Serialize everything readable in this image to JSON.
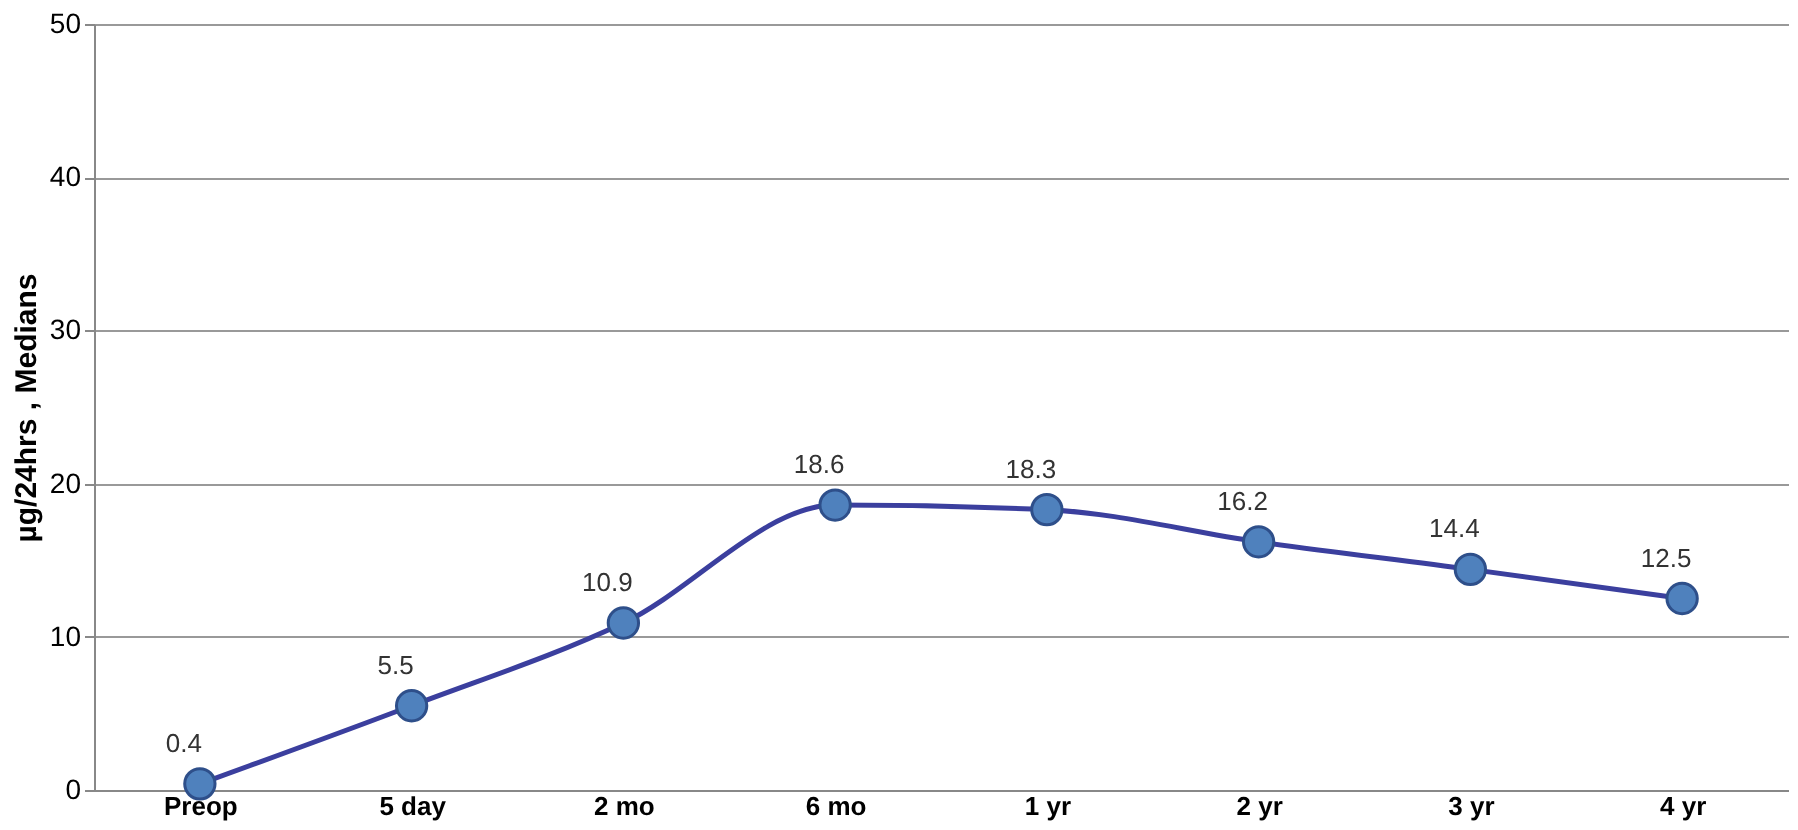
{
  "chart_data": {
    "type": "line",
    "ylabel": "µg/24hrs , Medians",
    "categories": [
      "Preop",
      "5 day",
      "2 mo",
      "6 mo",
      "1 yr",
      "2 yr",
      "3 yr",
      "4 yr"
    ],
    "series": [
      {
        "color": "#3b3f9e",
        "values": [
          0.4,
          5.5,
          10.9,
          18.6,
          18.3,
          16.2,
          14.4,
          12.5
        ]
      }
    ],
    "ylim": [
      0,
      50
    ],
    "yticks": [
      0,
      10,
      20,
      30,
      40,
      50
    ],
    "grid": "y",
    "marker": "circle",
    "line_style": "solid",
    "data_labels": true
  }
}
